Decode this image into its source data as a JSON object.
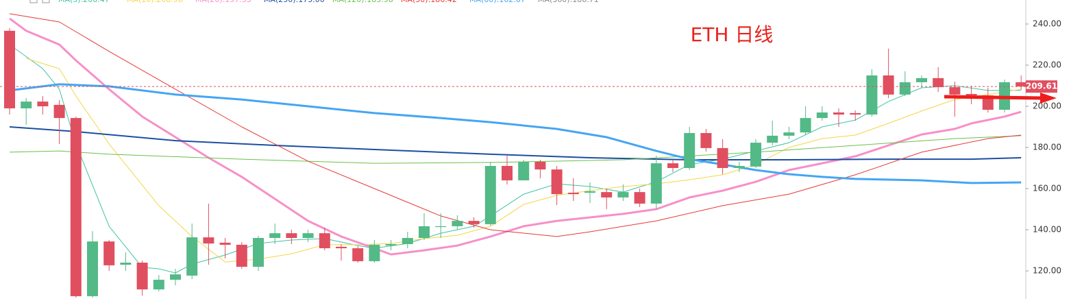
{
  "chart_data": {
    "type": "candlestick",
    "title": "ETH 日线",
    "ylim": [
      106.33,
      251.67
    ],
    "yticks": [
      {
        "value": 120,
        "label": "120.00"
      },
      {
        "value": 140,
        "label": "140.00"
      },
      {
        "value": 160,
        "label": "160.00"
      },
      {
        "value": 180,
        "label": "180.00"
      },
      {
        "value": 200,
        "label": "200.00"
      },
      {
        "value": 220,
        "label": "220.00"
      },
      {
        "value": 240,
        "label": "240.00"
      }
    ],
    "up_color": "#53b987",
    "down_color": "#e04f5f",
    "last_price": {
      "value": 209.61,
      "label": "209.61",
      "color": "#e04f5f"
    },
    "open": [
      236.7,
      199,
      202.3,
      200.7,
      194.3,
      107.7,
      134.3,
      123,
      124,
      111,
      115.7,
      117.7,
      136.3,
      133.7,
      132.7,
      122,
      136,
      138.3,
      136,
      138.3,
      131.7,
      131,
      124.7,
      132.3,
      133,
      136,
      141.3,
      141.7,
      144.3,
      142.7,
      171,
      164,
      173,
      169.3,
      158,
      158,
      158.3,
      155.7,
      158.3,
      152.7,
      172.3,
      170,
      187,
      179.7,
      170,
      170.7,
      182.3,
      185.7,
      187.3,
      194.3,
      197,
      196.7,
      196,
      215,
      205.7,
      211.7,
      213.7,
      209.3,
      206,
      205.3,
      198.3,
      211.7
    ],
    "high": [
      238,
      204,
      205,
      203,
      195,
      139.3,
      135,
      129,
      125,
      118,
      121,
      143,
      152.7,
      136,
      134,
      137,
      143,
      140,
      140,
      141,
      133,
      132,
      135,
      135,
      139,
      148,
      148,
      147,
      146,
      173,
      176,
      174,
      174,
      171,
      165,
      163,
      160,
      162,
      160,
      176,
      174,
      190,
      189,
      184,
      173,
      184,
      193,
      190,
      200,
      200,
      199,
      198,
      218,
      228,
      217,
      215,
      219,
      212,
      210,
      209,
      213,
      215
    ],
    "low": [
      196,
      191,
      196,
      181.7,
      107,
      107,
      120,
      120,
      108,
      110,
      113,
      116,
      123,
      126,
      121,
      120,
      133,
      133,
      134,
      130,
      125,
      124,
      124,
      130,
      131,
      135,
      136,
      140,
      141,
      142,
      162,
      164,
      165,
      152,
      154,
      153,
      150,
      154,
      151,
      150,
      168,
      169,
      178,
      167,
      168,
      170,
      181,
      184,
      186,
      193,
      190,
      193,
      195,
      204,
      205,
      209,
      207,
      195,
      201,
      197,
      197,
      208
    ],
    "close": [
      199,
      202.3,
      200,
      194.3,
      107.7,
      134.3,
      122.7,
      124,
      111,
      115.7,
      118.3,
      136.3,
      133.3,
      132.7,
      122,
      136,
      138.3,
      136,
      138.3,
      131,
      131,
      124.7,
      132.7,
      133,
      136,
      141.7,
      141.7,
      144.3,
      142.7,
      171,
      164,
      173,
      169.3,
      157.3,
      157.3,
      158.7,
      155.7,
      158.3,
      152.7,
      172.3,
      170,
      187,
      179.7,
      170,
      171,
      182.3,
      185.7,
      187.3,
      194.3,
      197,
      196,
      196,
      215,
      205.7,
      211.7,
      213.7,
      209.3,
      205.7,
      205.3,
      198.3,
      211.7,
      209.61
    ],
    "series": [
      {
        "name": "MA(5):206.47",
        "color": "#3fc3a5",
        "width": 1,
        "x": [
          0,
          2,
          3,
          4,
          5,
          6,
          8,
          9,
          10,
          11,
          13,
          15,
          17,
          19,
          21,
          22,
          24,
          26,
          28,
          29,
          31,
          33,
          35,
          37,
          39,
          41,
          43,
          45,
          47,
          49,
          51,
          53,
          55,
          57,
          59,
          61
        ],
        "values": [
          230,
          218.3,
          208.3,
          181.7,
          161.7,
          141.7,
          121.7,
          121,
          119,
          123.3,
          127.7,
          133.3,
          135,
          135.7,
          132.3,
          131,
          133.3,
          138.3,
          141.7,
          146.7,
          157.3,
          162.3,
          161,
          158.3,
          163.3,
          171.7,
          174.3,
          178.3,
          182.3,
          190,
          193.3,
          202.3,
          209,
          210,
          207.7,
          207.7
        ]
      },
      {
        "name": "MA(10):208.96",
        "color": "#f5d547",
        "width": 1,
        "x": [
          1,
          3,
          4,
          6,
          9,
          11,
          13,
          15,
          17,
          19,
          21,
          23,
          25,
          27,
          29,
          31,
          33,
          35,
          37,
          39,
          41,
          43,
          45,
          47,
          49,
          51,
          53,
          55,
          57,
          59,
          61
        ],
        "values": [
          223.3,
          218.3,
          205,
          181.7,
          151.7,
          136.7,
          124.3,
          125.7,
          128.3,
          132.7,
          132.7,
          133.3,
          135.7,
          137.3,
          141.7,
          152.3,
          156.7,
          159,
          161,
          162.3,
          164.3,
          166.7,
          171.7,
          180,
          184.3,
          186,
          191.7,
          197.7,
          203.3,
          205.7,
          208.3
        ]
      },
      {
        "name": "MA(20):197.53",
        "color": "#f78fc8",
        "width": 3,
        "x": [
          0,
          1,
          3,
          4,
          6,
          8,
          10,
          12,
          14,
          16,
          18,
          20,
          22,
          23,
          25,
          27,
          29,
          31,
          33,
          35,
          37,
          39,
          41,
          43,
          45,
          47,
          49,
          51,
          53,
          55,
          57,
          58,
          60,
          61
        ],
        "values": [
          242.7,
          236.7,
          230,
          222.3,
          208.3,
          195,
          185,
          175,
          165.7,
          155,
          144.3,
          136.7,
          131,
          128,
          130,
          132.3,
          136.7,
          141.7,
          144.3,
          146,
          147.7,
          150,
          155.7,
          159,
          163.3,
          169,
          172.3,
          175.7,
          181,
          186.3,
          189,
          191.7,
          195,
          197.3
        ]
      },
      {
        "name": "MA(250):175.00",
        "color": "#1c4fa1",
        "width": 2,
        "x": [
          0,
          4,
          10,
          16,
          22,
          29,
          35,
          41,
          47,
          53,
          58,
          61
        ],
        "values": [
          190,
          187.7,
          183.3,
          181,
          179,
          176.7,
          175,
          174,
          174,
          174.3,
          174.3,
          175
        ]
      },
      {
        "name": "MA(120):185.98",
        "color": "#6abf4b",
        "width": 1,
        "x": [
          0,
          3,
          6,
          14,
          22,
          29,
          37,
          45,
          51,
          57,
          61
        ],
        "values": [
          177.7,
          178.3,
          176.7,
          174.3,
          172.3,
          172.7,
          174,
          177.7,
          181,
          184.3,
          185.7
        ]
      },
      {
        "name": "MA(30):186.42",
        "color": "#e53935",
        "width": 1,
        "x": [
          0,
          3,
          6,
          10,
          14,
          18,
          22,
          26,
          29,
          33,
          35,
          39,
          43,
          47,
          51,
          55,
          59,
          61
        ],
        "values": [
          245,
          241,
          226.7,
          208.3,
          190,
          173.3,
          160,
          146.7,
          140,
          136.7,
          139,
          144.3,
          151.7,
          157.3,
          166.7,
          177.7,
          184.3,
          186
        ]
      },
      {
        "name": "MA(60):162.67",
        "color": "#45a5f2",
        "width": 3,
        "x": [
          0,
          3,
          6,
          10,
          14,
          18,
          22,
          26,
          29,
          33,
          36,
          39,
          41,
          43,
          45,
          47,
          49,
          51,
          55,
          58,
          61
        ],
        "values": [
          207.7,
          210.7,
          209.7,
          205.7,
          203.3,
          200,
          196.7,
          194.3,
          192.3,
          189,
          185,
          178.3,
          174.3,
          171.7,
          169,
          167,
          165.7,
          164.7,
          164,
          162.7,
          163
        ]
      },
      {
        "name": "MA(360):186.71",
        "color": "#888888",
        "width": 1,
        "x": [],
        "values": []
      }
    ]
  }
}
